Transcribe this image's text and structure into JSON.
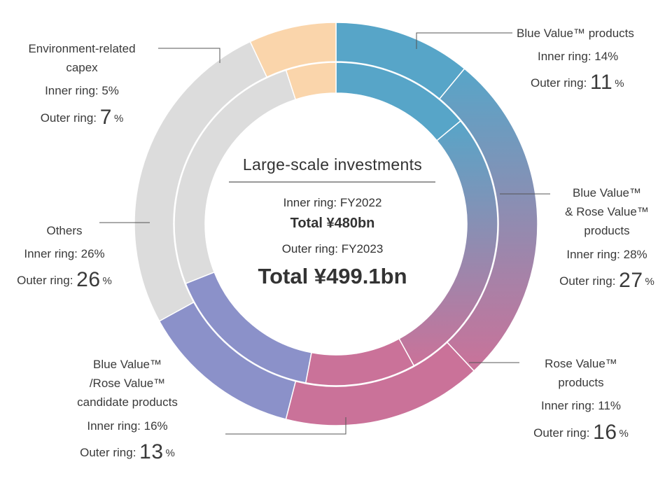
{
  "chart_data": {
    "type": "pie",
    "title": "Large-scale investments",
    "subtitle_inner": "Inner ring: FY2022",
    "total_inner": "Total ¥480bn",
    "subtitle_outer": "Outer ring: FY2023",
    "total_outer": "Total ¥499.1bn",
    "series": [
      {
        "name": "FY2022",
        "ring": "inner",
        "values": [
          14,
          28,
          11,
          16,
          26,
          5
        ]
      },
      {
        "name": "FY2023",
        "ring": "outer",
        "values": [
          11,
          27,
          16,
          13,
          26,
          7
        ]
      }
    ],
    "segments": [
      {
        "id": "blue",
        "label_lines": [
          "Blue Value™ products"
        ],
        "inner_text": "Inner ring: 14%",
        "outer_prefix": "Outer ring: ",
        "outer_value": "11",
        "pct": "%",
        "color": "#57a5c8"
      },
      {
        "id": "bluerose",
        "label_lines": [
          "Blue Value™",
          "& Rose Value™",
          "products"
        ],
        "inner_text": "Inner ring: 28%",
        "outer_prefix": "Outer ring: ",
        "outer_value": "27",
        "pct": "%",
        "color": "#9a86b0"
      },
      {
        "id": "rose",
        "label_lines": [
          "Rose Value™",
          "products"
        ],
        "inner_text": "Inner ring: 11%",
        "outer_prefix": "Outer ring: ",
        "outer_value": "16",
        "pct": "%",
        "color": "#ca7299"
      },
      {
        "id": "candidate",
        "label_lines": [
          "Blue Value™",
          "/Rose Value™",
          "candidate products"
        ],
        "inner_text": "Inner ring: 16%",
        "outer_prefix": "Outer ring: ",
        "outer_value": "13",
        "pct": "%",
        "color": "#8b91c9"
      },
      {
        "id": "others",
        "label_lines": [
          "Others"
        ],
        "inner_text": "Inner ring: 26%",
        "outer_prefix": "Outer ring: ",
        "outer_value": "26",
        "pct": "%",
        "color": "#dcdcdc"
      },
      {
        "id": "env",
        "label_lines": [
          "Environment-related",
          "capex"
        ],
        "inner_text": "Inner ring: 5%",
        "outer_prefix": "Outer ring: ",
        "outer_value": "7",
        "pct": "%",
        "color": "#fad5ab"
      }
    ]
  }
}
